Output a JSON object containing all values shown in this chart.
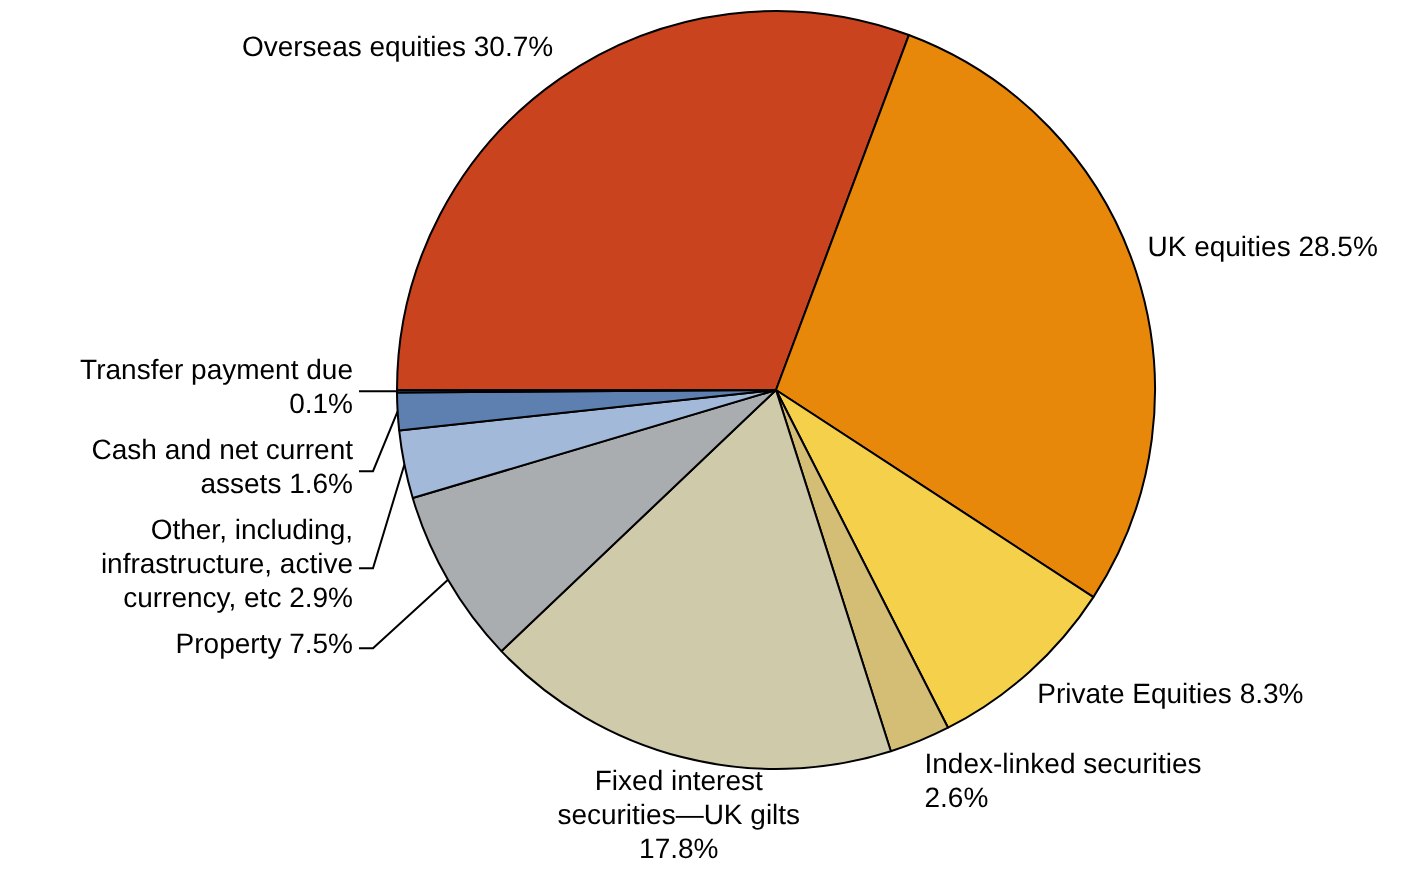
{
  "chart_data": {
    "type": "pie",
    "categories": [
      "Overseas equities",
      "UK equities",
      "Private Equities",
      "Index-linked securities",
      "Fixed interest securities—UK gilts",
      "Property",
      "Other, including, infrastructure, active currency, etc",
      "Cash and net current assets",
      "Transfer payment due"
    ],
    "values": [
      30.7,
      28.5,
      8.3,
      2.6,
      17.8,
      7.5,
      2.9,
      1.6,
      0.1
    ],
    "value_labels": [
      "30.7%",
      "28.5%",
      "8.3%",
      "2.6%",
      "17.8%",
      "7.5%",
      "2.9%",
      "1.6%",
      "0.1%"
    ],
    "colors": [
      "#c9431f",
      "#e8880a",
      "#f5d04a",
      "#d4bd75",
      "#cfcaaa",
      "#a9adb0",
      "#a3b9d9",
      "#5d80b0",
      "#2f4f80"
    ],
    "legend": false
  }
}
